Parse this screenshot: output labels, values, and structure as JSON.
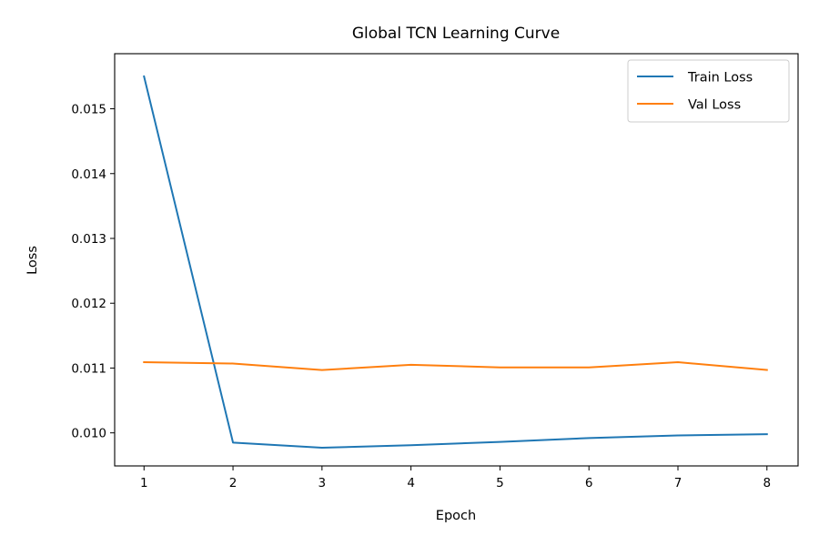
{
  "chart_data": {
    "type": "line",
    "title": "Global TCN Learning Curve",
    "xlabel": "Epoch",
    "ylabel": "Loss",
    "x": [
      1,
      2,
      3,
      4,
      5,
      6,
      7,
      8
    ],
    "xlim": [
      0.67,
      8.35
    ],
    "ylim": [
      0.00949,
      0.01585
    ],
    "xticks": [
      1,
      2,
      3,
      4,
      5,
      6,
      7,
      8
    ],
    "xtick_labels": [
      "1",
      "2",
      "3",
      "4",
      "5",
      "6",
      "7",
      "8"
    ],
    "yticks": [
      0.01,
      0.011,
      0.012,
      0.013,
      0.014,
      0.015
    ],
    "ytick_labels": [
      "0.010",
      "0.011",
      "0.012",
      "0.013",
      "0.014",
      "0.015"
    ],
    "grid": false,
    "legend_position": "top-right",
    "series": [
      {
        "name": "Train Loss",
        "color": "#1f77b4",
        "values": [
          0.0155,
          0.00985,
          0.00977,
          0.00981,
          0.00986,
          0.00992,
          0.00996,
          0.00998
        ]
      },
      {
        "name": "Val Loss",
        "color": "#ff7f0e",
        "values": [
          0.01109,
          0.01107,
          0.01097,
          0.01105,
          0.01101,
          0.01101,
          0.01109,
          0.01097
        ]
      }
    ]
  }
}
